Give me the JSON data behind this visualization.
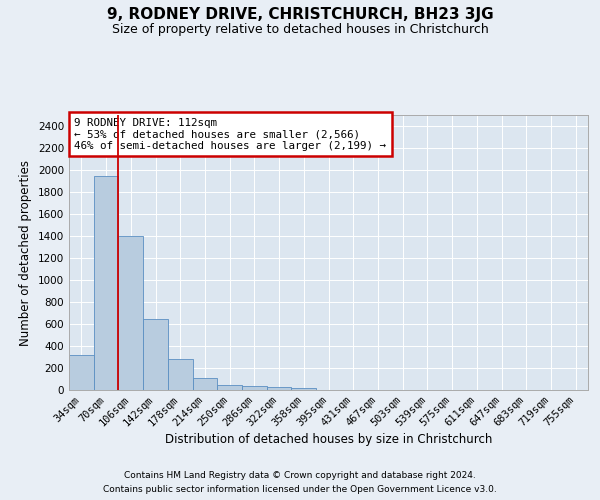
{
  "title": "9, RODNEY DRIVE, CHRISTCHURCH, BH23 3JG",
  "subtitle": "Size of property relative to detached houses in Christchurch",
  "xlabel": "Distribution of detached houses by size in Christchurch",
  "ylabel": "Number of detached properties",
  "footnote1": "Contains HM Land Registry data © Crown copyright and database right 2024.",
  "footnote2": "Contains public sector information licensed under the Open Government Licence v3.0.",
  "bar_labels": [
    "34sqm",
    "70sqm",
    "106sqm",
    "142sqm",
    "178sqm",
    "214sqm",
    "250sqm",
    "286sqm",
    "322sqm",
    "358sqm",
    "395sqm",
    "431sqm",
    "467sqm",
    "503sqm",
    "539sqm",
    "575sqm",
    "611sqm",
    "647sqm",
    "683sqm",
    "719sqm",
    "755sqm"
  ],
  "bar_values": [
    320,
    1950,
    1400,
    650,
    280,
    105,
    50,
    35,
    25,
    15,
    0,
    0,
    0,
    0,
    0,
    0,
    0,
    0,
    0,
    0,
    0
  ],
  "bar_color": "#b8ccdf",
  "bar_edge_color": "#5a8fc2",
  "red_line_index": 1,
  "red_line_color": "#cc0000",
  "annotation_text": "9 RODNEY DRIVE: 112sqm\n← 53% of detached houses are smaller (2,566)\n46% of semi-detached houses are larger (2,199) →",
  "annotation_box_edge": "#cc0000",
  "annotation_box_face": "#ffffff",
  "ylim": [
    0,
    2500
  ],
  "yticks": [
    0,
    200,
    400,
    600,
    800,
    1000,
    1200,
    1400,
    1600,
    1800,
    2000,
    2200,
    2400
  ],
  "background_color": "#e8eef5",
  "plot_background": "#dce6f0",
  "title_fontsize": 11,
  "subtitle_fontsize": 9,
  "axis_label_fontsize": 8.5,
  "tick_fontsize": 7.5,
  "footnote_fontsize": 6.5
}
